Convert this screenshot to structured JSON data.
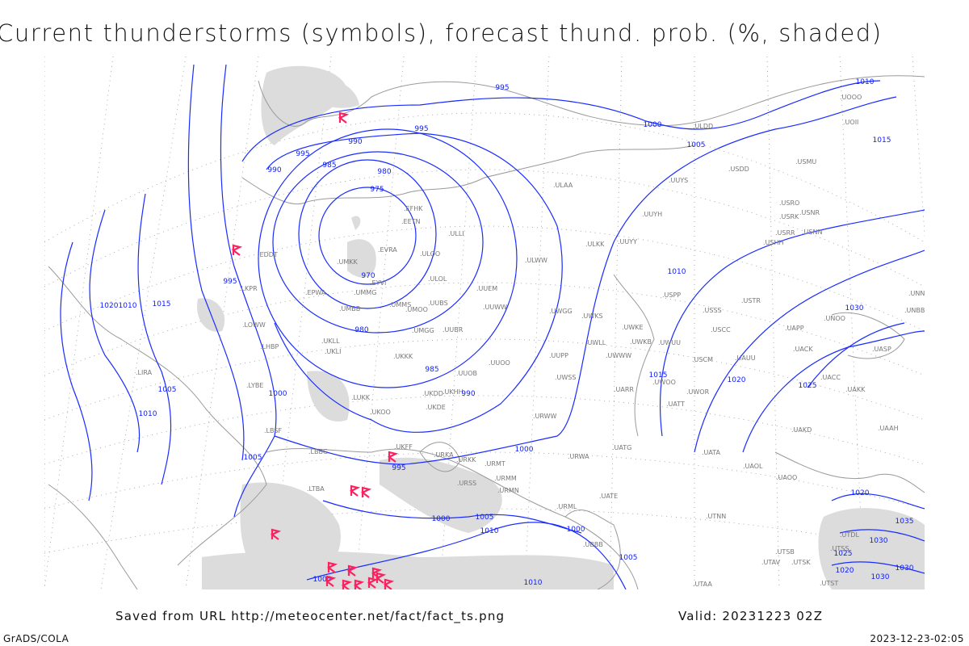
{
  "title": "Current thunderstorms (symbols), forecast thund. prob. (%, shaded)",
  "footer": {
    "saved_from": "Saved from URL http://meteocenter.net/fact/fact_ts.png",
    "valid": "Valid: 20231223 02Z",
    "credit": "GrADS/COLA",
    "timestamp": "2023-12-23-02:05"
  },
  "colors": {
    "isobar": "#1a2cff",
    "storm_symbol": "#ff2060",
    "shading": "#dcdcdc",
    "coastline": "#9a9a9a"
  },
  "isobar_labels": [
    "995",
    "995",
    "1000",
    "1005",
    "1015",
    "1010",
    "990",
    "995",
    "990",
    "985",
    "980",
    "975",
    "970",
    "980",
    "985",
    "990",
    "995",
    "995",
    "1000",
    "1005",
    "1010",
    "1005",
    "1010",
    "1015",
    "1020",
    "1025",
    "1030",
    "1020",
    "1010",
    "1015",
    "1000",
    "1000",
    "1000",
    "1005",
    "1010",
    "1005",
    "1010",
    "1005",
    "1020",
    "1035",
    "1030",
    "1025",
    "1020",
    "1030",
    "1030"
  ],
  "stations": [
    "EFHK",
    "EETN",
    "EVRA",
    "ULOO",
    "ULLI",
    "UMKK",
    "EYVI",
    "UMMG",
    "EPWA",
    "UMBB",
    "UMMS",
    "UMOO",
    "UUBS",
    "ULOL",
    "UUEM",
    "UUWW",
    "UMGG",
    "UUBR",
    "UKLL",
    "UKLI",
    "UKKK",
    "UUOB",
    "UUOO",
    "UKHH",
    "UKDD",
    "UKDE",
    "UKOO",
    "LUKK",
    "UKFF",
    "URKA",
    "URKK",
    "URMT",
    "URMM",
    "URMN",
    "URSS",
    "LBSF",
    "LYBE",
    "LHBP",
    "LOWW",
    "LKPR",
    "EDDT",
    "LIRA",
    "LBBG",
    "LTBA",
    "UUYY",
    "ULKK",
    "UUYH",
    "UUYS",
    "ULAA",
    "ULWW",
    "UWGG",
    "UWKS",
    "UWKE",
    "UWKB",
    "UWUU",
    "UWWW",
    "UWLL",
    "UUPP",
    "UWSS",
    "URWW",
    "UARR",
    "UWOO",
    "UATT",
    "UWOR",
    "USSS",
    "USCC",
    "USCM",
    "UAUU",
    "USTR",
    "USPP",
    "USHH",
    "USRR",
    "USRK",
    "USRO",
    "USNR",
    "USNN",
    "USMU",
    "USDD",
    "ULDD",
    "UOII",
    "UOOO",
    "UNBB",
    "UNNT",
    "UNOO",
    "UACK",
    "UAPP",
    "UASP",
    "UACC",
    "UAKK",
    "UAKD",
    "UAAH",
    "UATG",
    "UATA",
    "UAOL",
    "UAOO",
    "URWA",
    "UATE",
    "URML",
    "UBBB",
    "UTNN",
    "UTAV",
    "UTSB",
    "UTSK",
    "UTSS",
    "UTDL",
    "UTAA",
    "UTST"
  ],
  "storm_symbol_icon": "thunderstorm-flag-icon"
}
